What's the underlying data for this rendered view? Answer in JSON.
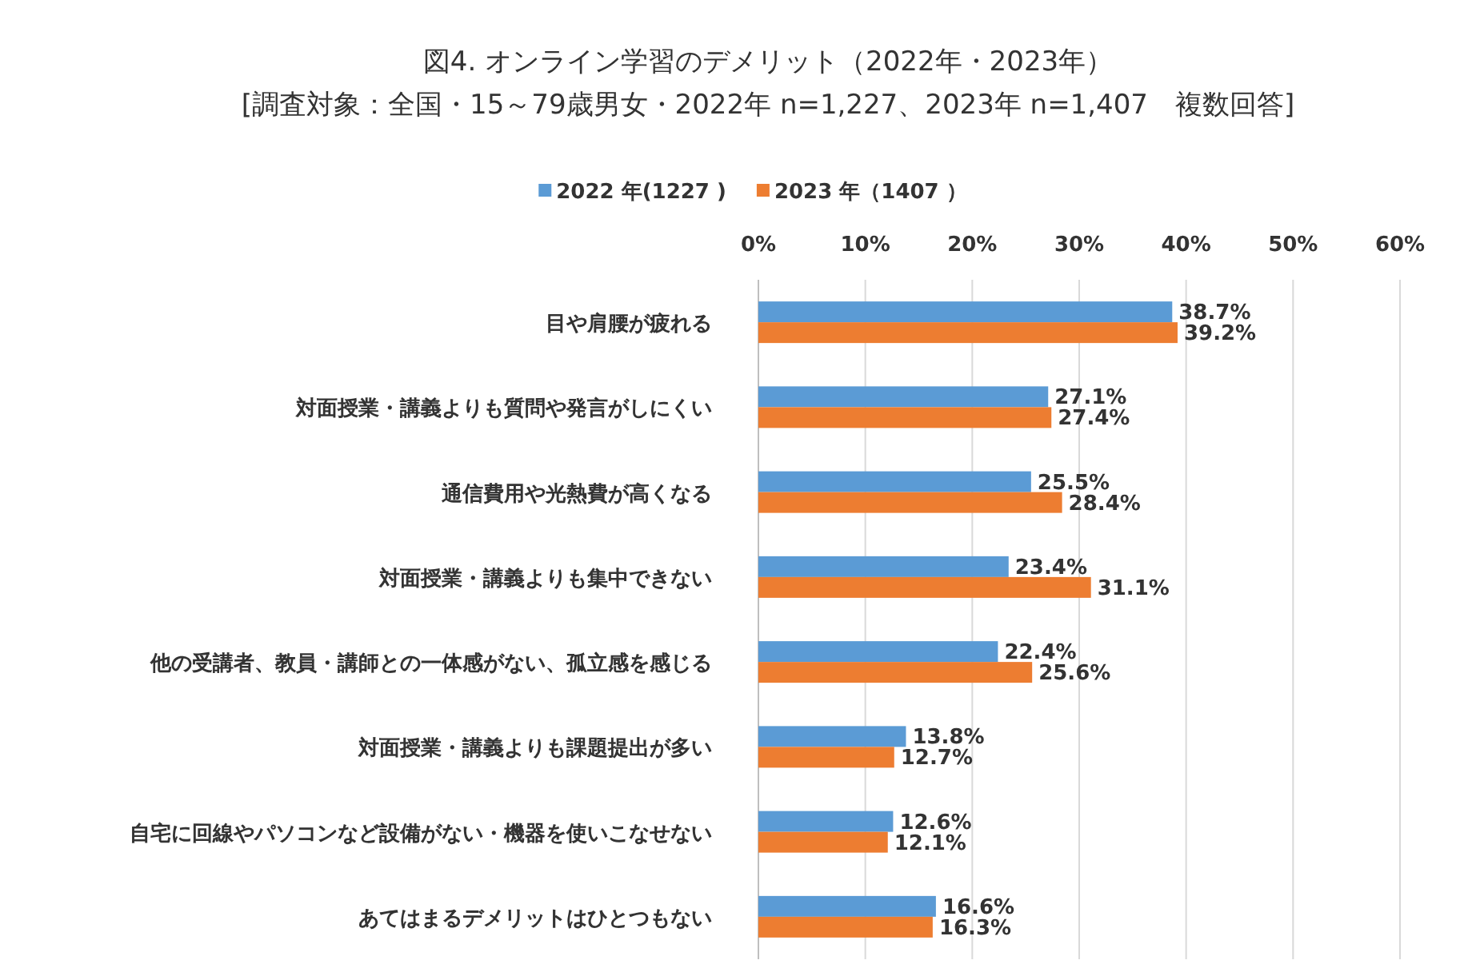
{
  "chart_data": {
    "type": "bar",
    "orientation": "horizontal",
    "title": "図4. オンライン学習のデメリット（2022年・2023年）",
    "subtitle": "[調査対象：全国・15～79歳男女・2022年 n=1,227、2023年 n=1,407　複数回答]",
    "categories": [
      "目や肩腰が疲れる",
      "対面授業・講義よりも質問や発言がしにくい",
      "通信費用や光熱費が高くなる",
      "対面授業・講義よりも集中できない",
      "他の受講者、教員・講師との一体感がない、孤立感を感じる",
      "対面授業・講義よりも課題提出が多い",
      "自宅に回線やパソコンなど設備がない・機器を使いこなせない",
      "あてはまるデメリットはひとつもない"
    ],
    "series": [
      {
        "name": "2022 年(1227 )",
        "color": "#5b9bd5",
        "values": [
          38.7,
          27.1,
          25.5,
          23.4,
          22.4,
          13.8,
          12.6,
          16.6
        ],
        "value_labels": [
          "38.7%",
          "27.1%",
          "25.5%",
          "23.4%",
          "22.4%",
          "13.8%",
          "12.6%",
          "16.6%"
        ]
      },
      {
        "name": "2023 年（1407 ）",
        "color": "#ed7d31",
        "values": [
          39.2,
          27.4,
          28.4,
          31.1,
          25.6,
          12.7,
          12.1,
          16.3
        ],
        "value_labels": [
          "39.2%",
          "27.4%",
          "28.4%",
          "31.1%",
          "25.6%",
          "12.7%",
          "12.1%",
          "16.3%"
        ]
      }
    ],
    "xlim": [
      0,
      60
    ],
    "xticks": [
      {
        "value": 0,
        "label": "0%"
      },
      {
        "value": 10,
        "label": "10%"
      },
      {
        "value": 20,
        "label": "20%"
      },
      {
        "value": 30,
        "label": "30%"
      },
      {
        "value": 40,
        "label": "40%"
      },
      {
        "value": 50,
        "label": "50%"
      },
      {
        "value": 60,
        "label": "60%"
      }
    ],
    "grid": "x",
    "legend": "top"
  }
}
